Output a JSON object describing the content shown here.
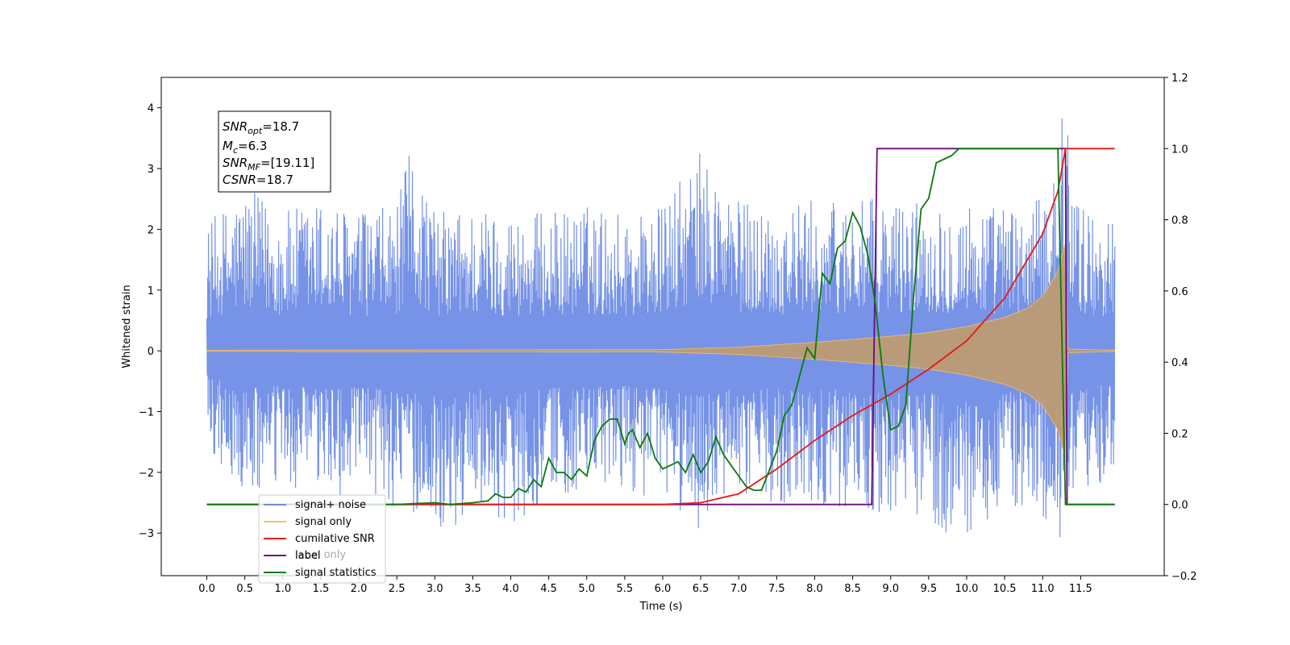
{
  "chart_data": {
    "type": "line",
    "xlabel": "Time (s)",
    "ylabel": "Whitened strain",
    "xlim": [
      -0.6,
      12.6
    ],
    "ylim": [
      -3.7,
      4.5
    ],
    "y2lim": [
      -0.2,
      1.2
    ],
    "x_ticks": [
      "0.0",
      "0.5",
      "1.0",
      "1.5",
      "2.0",
      "2.5",
      "3.0",
      "3.5",
      "4.0",
      "4.5",
      "5.0",
      "5.5",
      "6.0",
      "6.5",
      "7.0",
      "7.5",
      "8.0",
      "8.5",
      "9.0",
      "9.5",
      "10.0",
      "10.5",
      "11.0",
      "11.5"
    ],
    "y_ticks": [
      "4",
      "3",
      "2",
      "1",
      "0",
      "−1",
      "−2",
      "−3"
    ],
    "y2_ticks": [
      "1.2",
      "1.0",
      "0.8",
      "0.6",
      "0.4",
      "0.2",
      "0.0",
      "−0.2"
    ],
    "annotation": {
      "snr_opt": {
        "base": "SNR",
        "sub": "opt",
        "value": "=18.7"
      },
      "mc": {
        "base": "M",
        "sub": "c",
        "value": "=6.3"
      },
      "snr_mf": {
        "base": "SNR",
        "sub": "MF",
        "value": "=[19.11]"
      },
      "csnr": {
        "base": "CSNR",
        "value": "=18.7"
      }
    },
    "legend": {
      "placement": "lower-left",
      "entries": [
        "signal+ noise",
        "signal only",
        "cumilative SNR",
        "label",
        "signal statistics"
      ],
      "occluded_text": "label only"
    },
    "colors": {
      "noise": "#6f8de6",
      "signal": "#f5c06a",
      "overlap": "#bd9b73",
      "snr": "#e8170f",
      "label": "#6e0a7a",
      "stats": "#0b7a0b"
    },
    "series": [
      {
        "name": "signal+ noise",
        "axis": "left",
        "envelope_upper": [
          [
            0.0,
            2.1
          ],
          [
            0.5,
            2.7
          ],
          [
            1.0,
            2.3
          ],
          [
            1.5,
            2.5
          ],
          [
            2.0,
            2.3
          ],
          [
            2.5,
            2.4
          ],
          [
            2.7,
            3.45
          ],
          [
            3.0,
            2.3
          ],
          [
            3.5,
            2.4
          ],
          [
            4.0,
            2.3
          ],
          [
            4.5,
            2.3
          ],
          [
            5.0,
            2.4
          ],
          [
            5.5,
            2.3
          ],
          [
            6.0,
            2.4
          ],
          [
            6.5,
            3.3
          ],
          [
            7.0,
            2.5
          ],
          [
            7.5,
            2.4
          ],
          [
            8.0,
            2.5
          ],
          [
            8.5,
            2.5
          ],
          [
            9.0,
            2.5
          ],
          [
            9.5,
            2.5
          ],
          [
            10.0,
            2.5
          ],
          [
            10.5,
            2.4
          ],
          [
            11.0,
            2.5
          ],
          [
            11.2,
            3.7
          ],
          [
            11.3,
            4.1
          ],
          [
            11.5,
            2.4
          ],
          [
            11.95,
            2.2
          ]
        ],
        "envelope_lower": [
          [
            0.0,
            -1.6
          ],
          [
            0.5,
            -2.5
          ],
          [
            1.0,
            -2.3
          ],
          [
            1.5,
            -2.4
          ],
          [
            2.0,
            -2.4
          ],
          [
            2.5,
            -2.6
          ],
          [
            3.3,
            -3.05
          ],
          [
            3.5,
            -2.4
          ],
          [
            4.0,
            -2.9
          ],
          [
            4.5,
            -2.4
          ],
          [
            5.0,
            -2.4
          ],
          [
            5.5,
            -2.3
          ],
          [
            6.0,
            -2.5
          ],
          [
            6.5,
            -2.95
          ],
          [
            7.0,
            -2.4
          ],
          [
            7.5,
            -2.5
          ],
          [
            8.0,
            -2.5
          ],
          [
            8.5,
            -2.6
          ],
          [
            9.0,
            -2.8
          ],
          [
            9.5,
            -2.7
          ],
          [
            9.8,
            -3.3
          ],
          [
            10.5,
            -2.6
          ],
          [
            11.0,
            -2.8
          ],
          [
            11.2,
            -3.25
          ],
          [
            11.5,
            -2.5
          ],
          [
            11.95,
            -2.0
          ]
        ]
      },
      {
        "name": "signal only",
        "axis": "left",
        "amplitude": [
          [
            0.0,
            0.01
          ],
          [
            6.0,
            0.02
          ],
          [
            7.0,
            0.06
          ],
          [
            7.5,
            0.1
          ],
          [
            8.0,
            0.14
          ],
          [
            8.5,
            0.19
          ],
          [
            9.0,
            0.24
          ],
          [
            9.5,
            0.3
          ],
          [
            10.0,
            0.4
          ],
          [
            10.5,
            0.55
          ],
          [
            10.8,
            0.7
          ],
          [
            11.0,
            0.9
          ],
          [
            11.2,
            1.3
          ],
          [
            11.3,
            1.8
          ],
          [
            11.33,
            0.03
          ],
          [
            11.95,
            0.01
          ]
        ]
      },
      {
        "name": "cumilative SNR",
        "axis": "right",
        "points": [
          [
            0.0,
            0.0
          ],
          [
            6.0,
            0.0
          ],
          [
            6.5,
            0.005
          ],
          [
            7.0,
            0.03
          ],
          [
            7.5,
            0.1
          ],
          [
            8.0,
            0.18
          ],
          [
            8.5,
            0.25
          ],
          [
            9.0,
            0.31
          ],
          [
            9.5,
            0.38
          ],
          [
            10.0,
            0.46
          ],
          [
            10.5,
            0.58
          ],
          [
            11.0,
            0.76
          ],
          [
            11.2,
            0.88
          ],
          [
            11.3,
            1.0
          ],
          [
            11.95,
            1.0
          ]
        ]
      },
      {
        "name": "label",
        "axis": "right",
        "points": [
          [
            0.0,
            0.0
          ],
          [
            8.75,
            0.0
          ],
          [
            8.82,
            1.0
          ],
          [
            11.3,
            1.0
          ],
          [
            11.32,
            0.0
          ],
          [
            11.95,
            0.0
          ]
        ]
      },
      {
        "name": "signal statistics",
        "axis": "right",
        "points": [
          [
            0.0,
            0.0
          ],
          [
            2.5,
            0.0
          ],
          [
            3.0,
            0.005
          ],
          [
            3.2,
            0.0
          ],
          [
            3.5,
            0.005
          ],
          [
            3.7,
            0.01
          ],
          [
            3.8,
            0.03
          ],
          [
            3.9,
            0.02
          ],
          [
            4.0,
            0.02
          ],
          [
            4.1,
            0.045
          ],
          [
            4.2,
            0.035
          ],
          [
            4.3,
            0.07
          ],
          [
            4.4,
            0.05
          ],
          [
            4.5,
            0.13
          ],
          [
            4.6,
            0.09
          ],
          [
            4.7,
            0.09
          ],
          [
            4.8,
            0.07
          ],
          [
            4.9,
            0.1
          ],
          [
            5.0,
            0.08
          ],
          [
            5.1,
            0.18
          ],
          [
            5.2,
            0.22
          ],
          [
            5.3,
            0.24
          ],
          [
            5.4,
            0.24
          ],
          [
            5.5,
            0.17
          ],
          [
            5.55,
            0.2
          ],
          [
            5.6,
            0.21
          ],
          [
            5.7,
            0.16
          ],
          [
            5.8,
            0.2
          ],
          [
            5.9,
            0.13
          ],
          [
            6.0,
            0.1
          ],
          [
            6.1,
            0.11
          ],
          [
            6.2,
            0.12
          ],
          [
            6.3,
            0.09
          ],
          [
            6.4,
            0.14
          ],
          [
            6.5,
            0.09
          ],
          [
            6.6,
            0.12
          ],
          [
            6.7,
            0.19
          ],
          [
            6.8,
            0.14
          ],
          [
            6.9,
            0.11
          ],
          [
            7.0,
            0.08
          ],
          [
            7.1,
            0.05
          ],
          [
            7.2,
            0.04
          ],
          [
            7.3,
            0.04
          ],
          [
            7.5,
            0.15
          ],
          [
            7.6,
            0.25
          ],
          [
            7.7,
            0.28
          ],
          [
            7.8,
            0.36
          ],
          [
            7.9,
            0.44
          ],
          [
            8.0,
            0.41
          ],
          [
            8.1,
            0.65
          ],
          [
            8.2,
            0.62
          ],
          [
            8.3,
            0.72
          ],
          [
            8.4,
            0.74
          ],
          [
            8.5,
            0.82
          ],
          [
            8.6,
            0.78
          ],
          [
            8.7,
            0.7
          ],
          [
            8.8,
            0.56
          ],
          [
            8.9,
            0.36
          ],
          [
            9.0,
            0.21
          ],
          [
            9.1,
            0.22
          ],
          [
            9.2,
            0.28
          ],
          [
            9.3,
            0.58
          ],
          [
            9.4,
            0.83
          ],
          [
            9.5,
            0.86
          ],
          [
            9.6,
            0.96
          ],
          [
            9.7,
            0.97
          ],
          [
            9.8,
            0.98
          ],
          [
            9.9,
            1.0
          ],
          [
            11.2,
            1.0
          ],
          [
            11.3,
            0.0
          ],
          [
            11.95,
            0.0
          ]
        ]
      }
    ]
  }
}
